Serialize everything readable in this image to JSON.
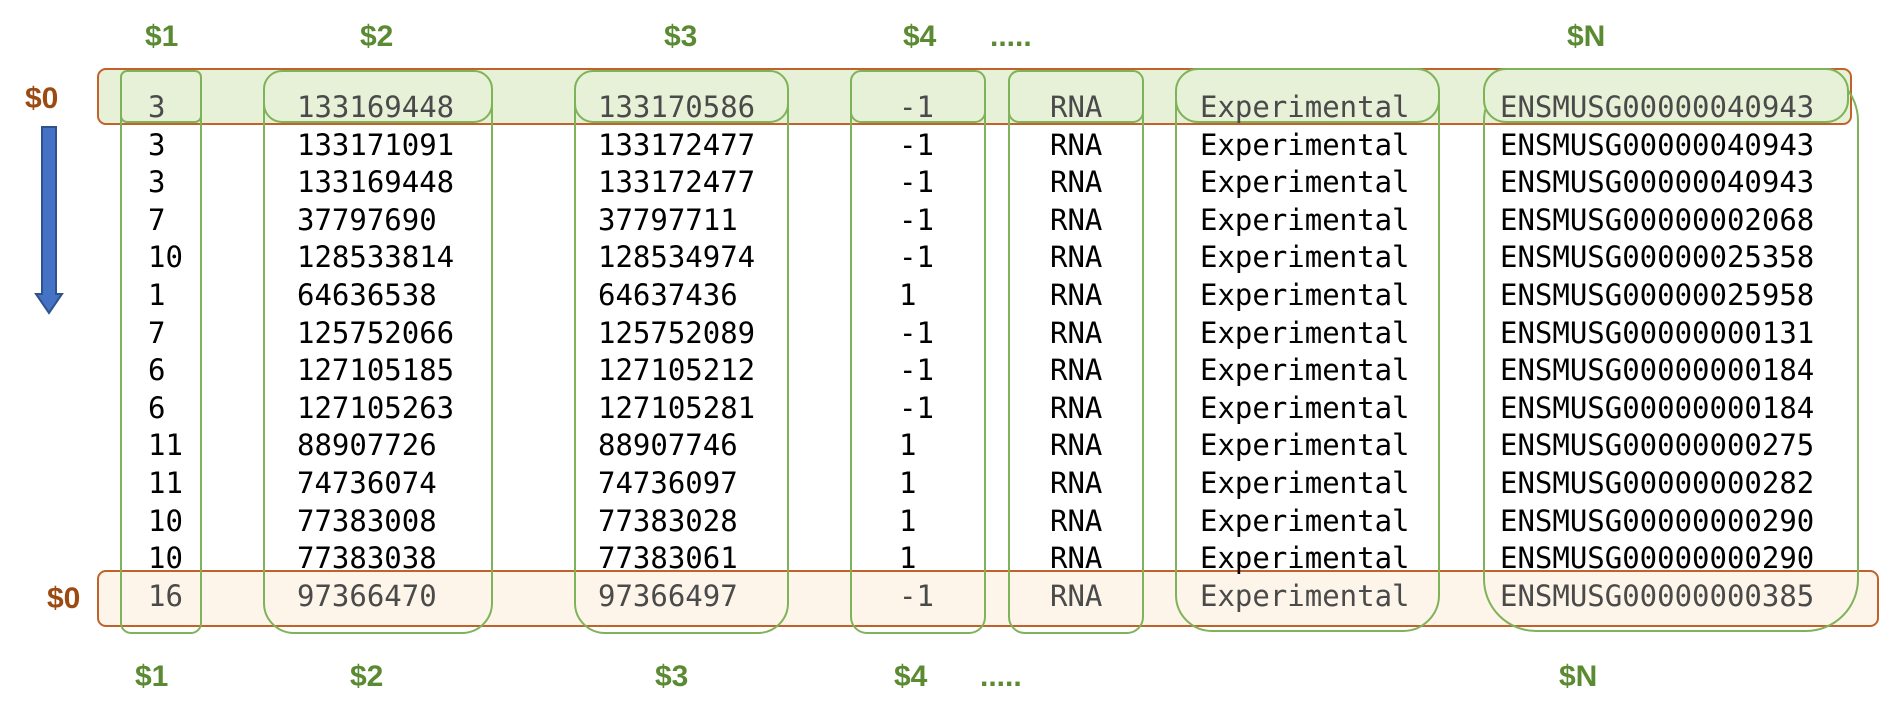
{
  "colors": {
    "col_label": "#5a8a32",
    "row_label": "#9b4a12",
    "col_stroke": "#7fb35a",
    "row_stroke": "#c0622a",
    "top_row_fill": "#e6f1d7",
    "bottom_row_fill": "#fdf5ea",
    "arrow_fill": "#4472c4",
    "arrow_stroke": "#2f528f",
    "text": "#000000"
  },
  "top_labels": [
    "$1",
    "$2",
    "$3",
    "$4",
    ".....",
    "$N"
  ],
  "bottom_labels": [
    "$1",
    "$2",
    "$3",
    "$4",
    ".....",
    "$N"
  ],
  "row_labels": {
    "first": "$0",
    "last": "$0"
  },
  "arrow": {
    "icon": "down-arrow-icon",
    "direction": "down"
  },
  "table": {
    "rows": [
      [
        "3",
        "133169448",
        "133170586",
        "-1",
        "RNA",
        "Experimental",
        "ENSMUSG00000040943"
      ],
      [
        "3",
        "133171091",
        "133172477",
        "-1",
        "RNA",
        "Experimental",
        "ENSMUSG00000040943"
      ],
      [
        "3",
        "133169448",
        "133172477",
        "-1",
        "RNA",
        "Experimental",
        "ENSMUSG00000040943"
      ],
      [
        "7",
        "37797690",
        "37797711",
        "-1",
        "RNA",
        "Experimental",
        "ENSMUSG00000002068"
      ],
      [
        "10",
        "128533814",
        "128534974",
        "-1",
        "RNA",
        "Experimental",
        "ENSMUSG00000025358"
      ],
      [
        "1",
        "64636538",
        "64637436",
        "1",
        "RNA",
        "Experimental",
        "ENSMUSG00000025958"
      ],
      [
        "7",
        "125752066",
        "125752089",
        "-1",
        "RNA",
        "Experimental",
        "ENSMUSG00000000131"
      ],
      [
        "6",
        "127105185",
        "127105212",
        "-1",
        "RNA",
        "Experimental",
        "ENSMUSG00000000184"
      ],
      [
        "6",
        "127105263",
        "127105281",
        "-1",
        "RNA",
        "Experimental",
        "ENSMUSG00000000184"
      ],
      [
        "11",
        "88907726",
        "88907746",
        "1",
        "RNA",
        "Experimental",
        "ENSMUSG00000000275"
      ],
      [
        "11",
        "74736074",
        "74736097",
        "1",
        "RNA",
        "Experimental",
        "ENSMUSG00000000282"
      ],
      [
        "10",
        "77383008",
        "77383028",
        "1",
        "RNA",
        "Experimental",
        "ENSMUSG00000000290"
      ],
      [
        "10",
        "77383038",
        "77383061",
        "1",
        "RNA",
        "Experimental",
        "ENSMUSG00000000290"
      ],
      [
        "16",
        "97366470",
        "97366497",
        "-1",
        "RNA",
        "Experimental",
        "ENSMUSG00000000385"
      ]
    ]
  }
}
